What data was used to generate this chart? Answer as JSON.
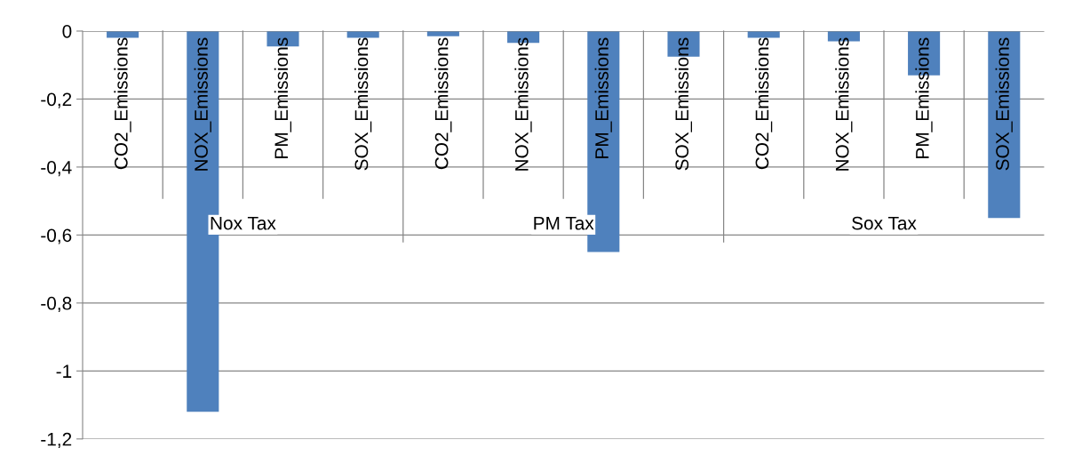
{
  "chart_data": {
    "type": "bar",
    "categories": [
      "CO2_Emissions",
      "NOX_Emissions",
      "PM_Emissions",
      "SOX_Emissions",
      "CO2_Emissions",
      "NOX_Emissions",
      "PM_Emissions",
      "SOX_Emissions",
      "CO2_Emissions",
      "NOX_Emissions",
      "PM_Emissions",
      "SOX_Emissions"
    ],
    "values": [
      -0.02,
      -1.12,
      -0.045,
      -0.02,
      -0.015,
      -0.035,
      -0.65,
      -0.075,
      -0.02,
      -0.03,
      -0.13,
      -0.55
    ],
    "color": "#4f81bd",
    "annotations": [
      "Nox Tax",
      "PM Tax",
      "Sox Tax"
    ],
    "ylim": [
      -1.2,
      0
    ],
    "yticks": [
      {
        "value": -1.2,
        "label": "-1,2"
      },
      {
        "value": -1,
        "label": "-1"
      },
      {
        "value": -0.8,
        "label": "-0,8"
      },
      {
        "value": -0.6,
        "label": "-0,6"
      },
      {
        "value": -0.4,
        "label": "-0,4"
      },
      {
        "value": -0.2,
        "label": "-0,2"
      },
      0
    ],
    "grid": "y",
    "legend": false
  }
}
